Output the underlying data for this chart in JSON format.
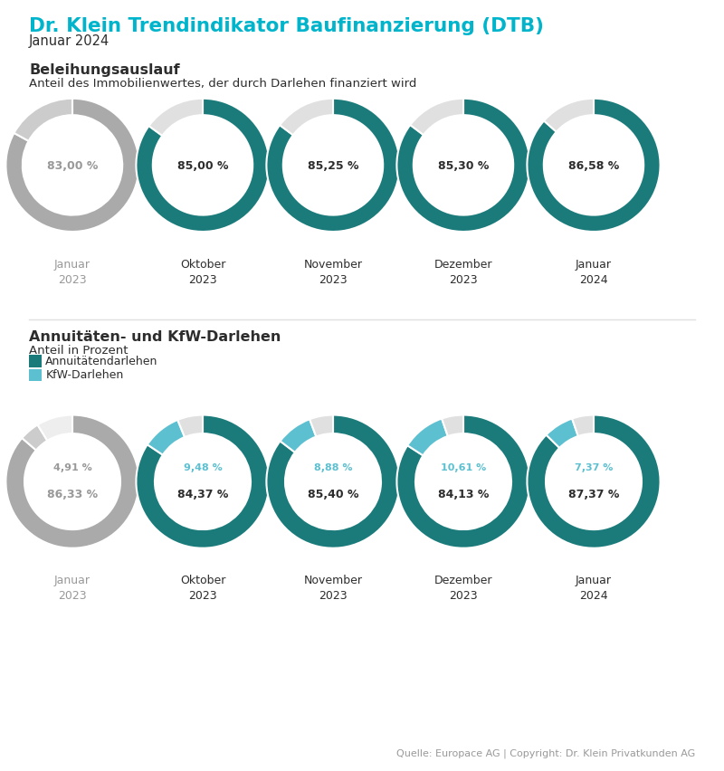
{
  "title": "Dr. Klein Trendindikator Baufinanzierung (DTB)",
  "subtitle": "Januar 2024",
  "section1_title": "Beleihungsauslauf",
  "section1_subtitle": "Anteil des Immobilienwertes, der durch Darlehen finanziert wird",
  "section2_title": "Annuitäten- und KfW-Darlehen",
  "section2_subtitle": "Anteil in Prozent",
  "legend1": "Annuitätendarlehen",
  "legend2": "KfW-Darlehen",
  "source": "Quelle: Europace AG | Copyright: Dr. Klein Privatkunden AG",
  "months": [
    "Januar\n2023",
    "Oktober\n2023",
    "November\n2023",
    "Dezember\n2023",
    "Januar\n2024"
  ],
  "months_gray": [
    true,
    false,
    false,
    false,
    false
  ],
  "beleihung_values": [
    83.0,
    85.0,
    85.25,
    85.3,
    86.58
  ],
  "beleihung_labels": [
    "83,00 %",
    "85,00 %",
    "85,25 %",
    "85,30 %",
    "86,58 %"
  ],
  "annuity_values": [
    86.33,
    84.37,
    85.4,
    84.13,
    87.37
  ],
  "annuity_labels": [
    "86,33 %",
    "84,37 %",
    "85,40 %",
    "84,13 %",
    "87,37 %"
  ],
  "kfw_values": [
    4.91,
    9.48,
    8.88,
    10.61,
    7.37
  ],
  "kfw_labels": [
    "4,91 %",
    "9,48 %",
    "8,88 %",
    "10,61 %",
    "7,37 %"
  ],
  "color_teal": "#1b7b7b",
  "color_teal_light": "#5dc0d0",
  "color_gray_dark": "#aaaaaa",
  "color_gray_light": "#cccccc",
  "color_gray_empty": "#e0e0e0",
  "color_title": "#00b4cc",
  "color_text_dark": "#2d2d2d",
  "color_text_gray": "#999999",
  "color_bg": "#ffffff",
  "color_separator": "#e0e0e0"
}
